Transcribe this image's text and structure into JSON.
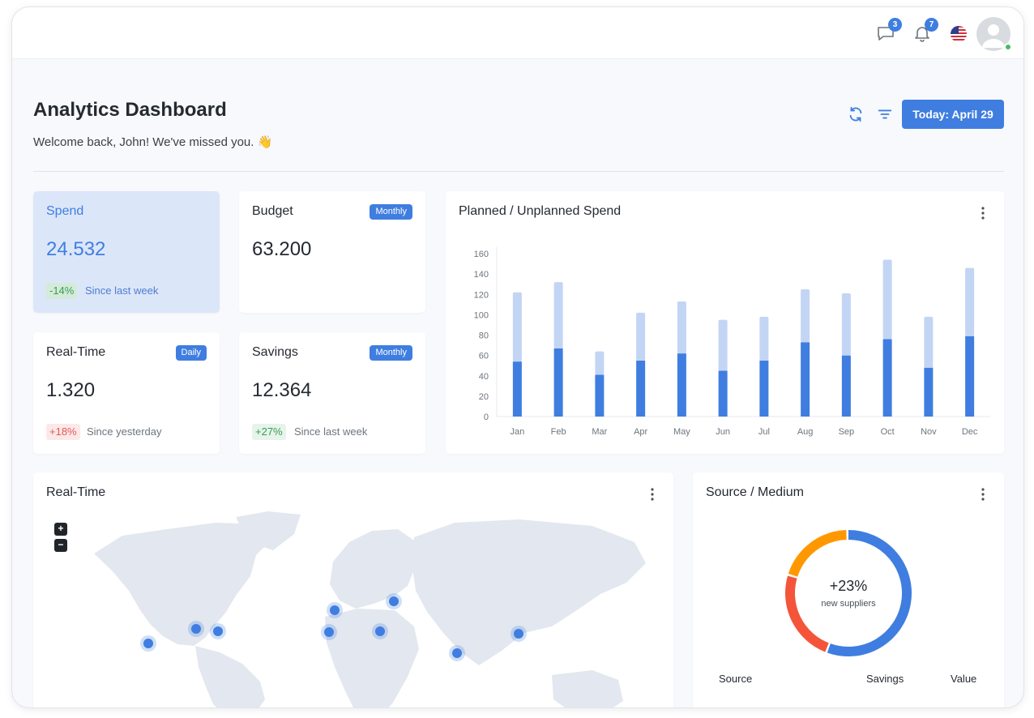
{
  "header": {
    "messages_badge": "3",
    "notifications_badge": "7",
    "language_flag": "us-flag-icon",
    "online": true
  },
  "page": {
    "title": "Analytics Dashboard",
    "subtitle": "Welcome back, John! We've missed you. 👋",
    "today_button": "Today: April 29"
  },
  "stats": {
    "spend": {
      "title": "Spend",
      "value": "24.532",
      "change": "-14%",
      "period": "Since last week"
    },
    "budget": {
      "title": "Budget",
      "badge": "Monthly",
      "value": "63.200"
    },
    "realtime": {
      "title": "Real-Time",
      "badge": "Daily",
      "value": "1.320",
      "change": "+18%",
      "period": "Since yesterday"
    },
    "savings": {
      "title": "Savings",
      "badge": "Monthly",
      "value": "12.364",
      "change": "+27%",
      "period": "Since last week"
    }
  },
  "planned_chart": {
    "title": "Planned / Unplanned Spend"
  },
  "chart_data": {
    "type": "bar",
    "stacked": true,
    "categories": [
      "Jan",
      "Feb",
      "Mar",
      "Apr",
      "May",
      "Jun",
      "Jul",
      "Aug",
      "Sep",
      "Oct",
      "Nov",
      "Dec"
    ],
    "series": [
      {
        "values": [
          54,
          67,
          41,
          55,
          62,
          45,
          55,
          73,
          60,
          76,
          48,
          79
        ],
        "color": "#3f7ee0"
      },
      {
        "values": [
          68,
          65,
          23,
          47,
          51,
          50,
          43,
          52,
          61,
          78,
          50,
          67
        ],
        "color": "#c3d5f4"
      }
    ],
    "ylim": [
      0,
      160
    ],
    "yticks": [
      0,
      20,
      40,
      60,
      80,
      100,
      120,
      140,
      160
    ],
    "grid": false,
    "legend": "none"
  },
  "map_card": {
    "title": "Real-Time",
    "zoom_in": "+",
    "zoom_out": "−",
    "markers": [
      "los-angeles",
      "chicago",
      "new-york",
      "lisbon",
      "london",
      "istanbul",
      "moscow",
      "mumbai",
      "shanghai"
    ]
  },
  "source_card": {
    "title": "Source / Medium",
    "center_value": "+23%",
    "center_label": "new suppliers",
    "donut": [
      {
        "value": 56,
        "color": "#3f7ee0"
      },
      {
        "value": 24,
        "color": "#f4553a"
      },
      {
        "value": 20,
        "color": "#ff9800"
      }
    ],
    "columns": [
      "Source",
      "Savings",
      "Value"
    ]
  },
  "colors": {
    "accent": "#3f7ee0",
    "accent_light": "#c3d5f4",
    "positive": "#3a9b57",
    "negative": "#e05a5a"
  }
}
